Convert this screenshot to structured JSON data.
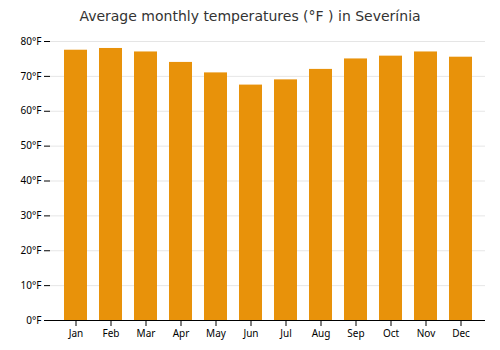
{
  "chart_data": {
    "type": "bar",
    "title": "Average monthly temperatures (°F ) in Severínia",
    "categories": [
      "Jan",
      "Feb",
      "Mar",
      "Apr",
      "May",
      "Jun",
      "Jul",
      "Aug",
      "Sep",
      "Oct",
      "Nov",
      "Dec"
    ],
    "values": [
      77.5,
      78.0,
      77.0,
      74.0,
      71.0,
      67.5,
      69.0,
      72.0,
      75.0,
      75.8,
      77.0,
      75.5
    ],
    "color": "#E8920A",
    "ylim": [
      0,
      80
    ],
    "yticks": [
      {
        "value": 0,
        "label": "0°F"
      },
      {
        "value": 10,
        "label": "10°F"
      },
      {
        "value": 20,
        "label": "20°F"
      },
      {
        "value": 30,
        "label": "30°F"
      },
      {
        "value": 40,
        "label": "40°F"
      },
      {
        "value": 50,
        "label": "50°F"
      },
      {
        "value": 60,
        "label": "60°F"
      },
      {
        "value": 70,
        "label": "70°F"
      },
      {
        "value": 80,
        "label": "80°F"
      }
    ],
    "grid": true
  }
}
